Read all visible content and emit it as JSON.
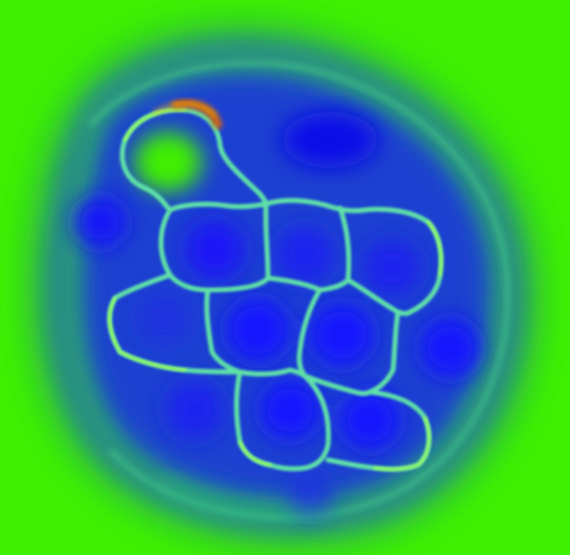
{
  "image": {
    "description_kind": "false-color scanning-probe micrograph of a polycyclic molecule",
    "background_color": "#3df000",
    "cell_core_color": "#1020ff",
    "bond_color": "#5fe0a8",
    "bond_highlight_color": "#9cff60",
    "hotspot_color": "#e06a00",
    "halo_color": "#1a4fd8"
  }
}
